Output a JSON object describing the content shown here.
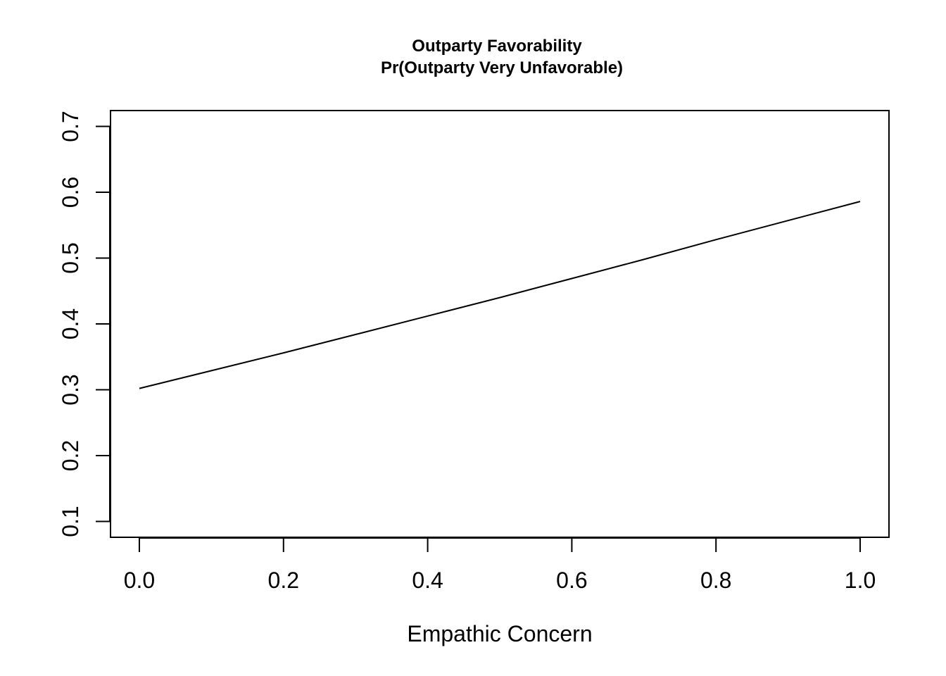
{
  "chart_data": {
    "type": "line",
    "title": "Outparty Favorability",
    "subtitle": "Pr(Outparty Very Unfavorable)",
    "xlabel": "Empathic Concern",
    "ylabel": "",
    "xlim": [
      -0.04,
      1.04
    ],
    "ylim": [
      0.076,
      0.724
    ],
    "x_ticks": [
      0.0,
      0.2,
      0.4,
      0.6,
      0.8,
      1.0
    ],
    "x_tick_labels": [
      "0.0",
      "0.2",
      "0.4",
      "0.6",
      "0.8",
      "1.0"
    ],
    "y_ticks": [
      0.1,
      0.2,
      0.3,
      0.4,
      0.5,
      0.6,
      0.7
    ],
    "y_tick_labels": [
      "0.1",
      "0.2",
      "0.3",
      "0.4",
      "0.5",
      "0.6",
      "0.7"
    ],
    "grid": false,
    "legend": "none",
    "series": [
      {
        "x": [
          0.0,
          0.1,
          0.2,
          0.3,
          0.4,
          0.5,
          0.6,
          0.7,
          0.8,
          0.9,
          1.0
        ],
        "values": [
          0.302,
          0.329,
          0.356,
          0.384,
          0.412,
          0.44,
          0.469,
          0.498,
          0.528,
          0.557,
          0.586
        ],
        "color": "#000000"
      }
    ]
  }
}
